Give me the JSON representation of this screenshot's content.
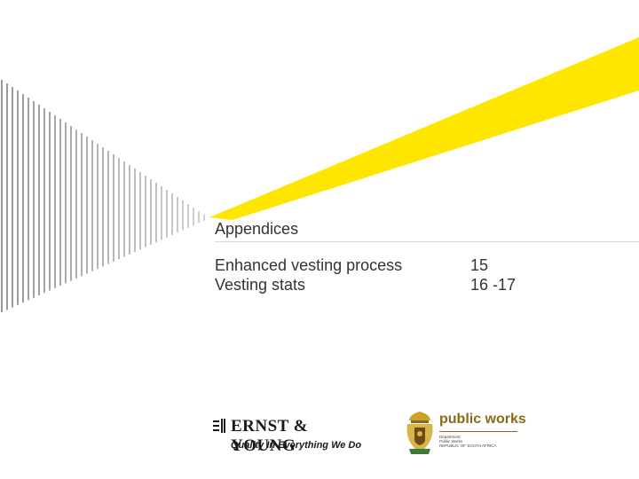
{
  "slide": {
    "title": "Appendices",
    "toc": [
      {
        "label": "Enhanced vesting process",
        "page": "15"
      },
      {
        "label": "Vesting stats",
        "page": "16 -17"
      }
    ]
  },
  "logos": {
    "ey": {
      "name": "ERNST & YOUNG",
      "tagline": "Quality In Everything We Do"
    },
    "public_works": {
      "name": "public works",
      "sub_line1": "Department:",
      "sub_line2": "Public Works",
      "sub_line3": "REPUBLIC OF SOUTH AFRICA"
    }
  },
  "colors": {
    "accent_yellow": "#ffe600",
    "stripe_gray": "#7f7f7f",
    "text": "#333333",
    "pw_brown": "#8a6a1a"
  }
}
